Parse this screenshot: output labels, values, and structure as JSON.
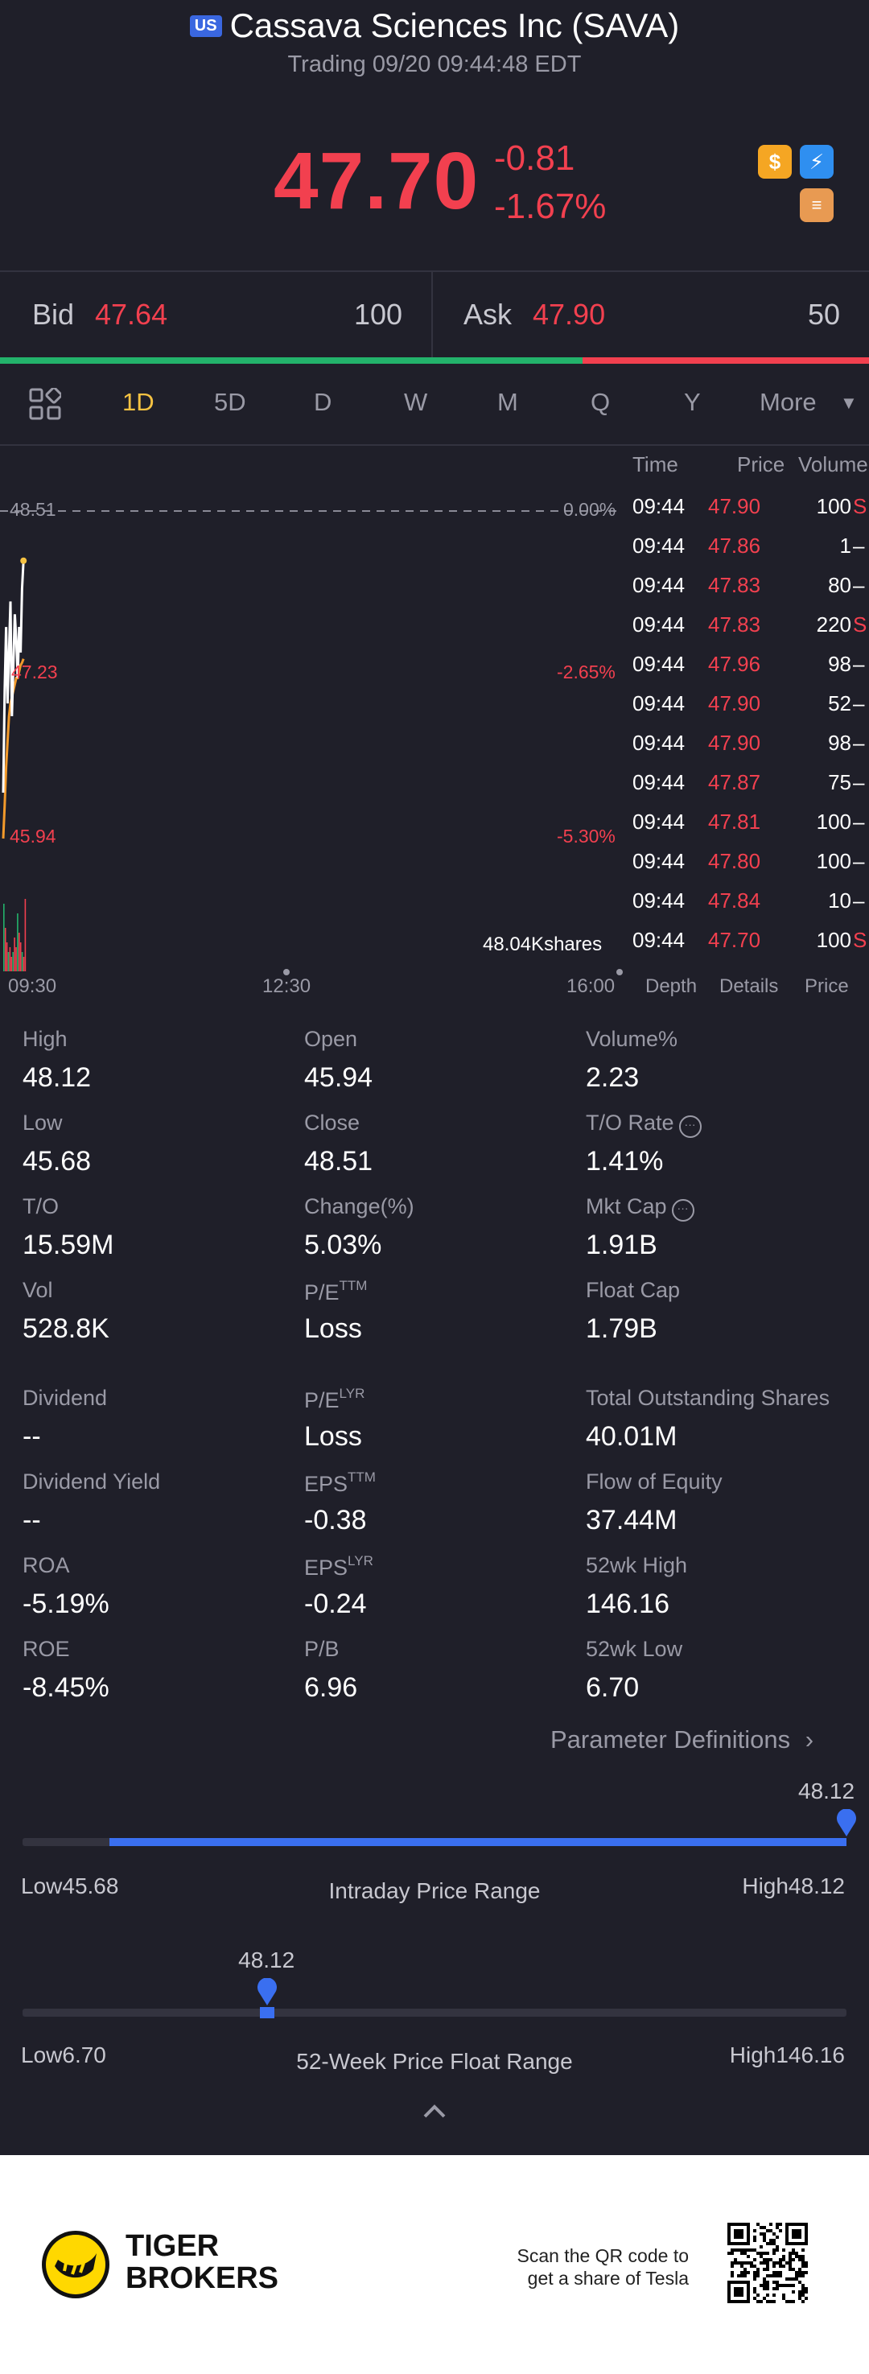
{
  "header": {
    "market_badge": "US",
    "title": "Cassava Sciences Inc (SAVA)",
    "subtitle": "Trading 09/20 09:44:48 EDT",
    "price": "47.70",
    "change": "-0.81",
    "change_pct": "-1.67%",
    "icons": [
      "dollar-icon",
      "flash-icon",
      "stack-icon"
    ]
  },
  "quote": {
    "bid_label": "Bid",
    "bid_price": "47.64",
    "bid_size": "100",
    "ask_label": "Ask",
    "ask_price": "47.90",
    "ask_size": "50",
    "bid_share": 0.67
  },
  "tabs": [
    "1D",
    "5D",
    "D",
    "W",
    "M",
    "Q",
    "Y",
    "More"
  ],
  "active_tab": "1D",
  "ticks": {
    "headers": {
      "time": "Time",
      "price": "Price",
      "volume": "Volume"
    },
    "rows": [
      {
        "time": "09:44",
        "price": "47.90",
        "volume": "100",
        "flag": "S"
      },
      {
        "time": "09:44",
        "price": "47.86",
        "volume": "1",
        "flag": "–"
      },
      {
        "time": "09:44",
        "price": "47.83",
        "volume": "80",
        "flag": "–"
      },
      {
        "time": "09:44",
        "price": "47.83",
        "volume": "220",
        "flag": "S"
      },
      {
        "time": "09:44",
        "price": "47.96",
        "volume": "98",
        "flag": "–"
      },
      {
        "time": "09:44",
        "price": "47.90",
        "volume": "52",
        "flag": "–"
      },
      {
        "time": "09:44",
        "price": "47.90",
        "volume": "98",
        "flag": "–"
      },
      {
        "time": "09:44",
        "price": "47.87",
        "volume": "75",
        "flag": "–"
      },
      {
        "time": "09:44",
        "price": "47.81",
        "volume": "100",
        "flag": "–"
      },
      {
        "time": "09:44",
        "price": "47.80",
        "volume": "100",
        "flag": "–"
      },
      {
        "time": "09:44",
        "price": "47.84",
        "volume": "10",
        "flag": "–"
      },
      {
        "time": "09:44",
        "price": "47.70",
        "volume": "100",
        "flag": "S"
      }
    ],
    "subtabs": [
      "Depth",
      "Details",
      "Price"
    ],
    "active_subtab": "Details"
  },
  "chart": {
    "price_high": "48.51",
    "price_mid": "47.23",
    "price_low": "45.94",
    "pct_high": "0.00%",
    "pct_mid": "-2.65%",
    "pct_low": "-5.30%",
    "volume_label": "48.04Kshares",
    "x_start": "09:30",
    "x_mid": "12:30",
    "x_end": "16:00"
  },
  "chart_data": {
    "type": "line",
    "title": "",
    "x": [
      "09:30",
      "09:31",
      "09:32",
      "09:33",
      "09:34",
      "09:35",
      "09:36",
      "09:37",
      "09:38",
      "09:39",
      "09:40",
      "09:41",
      "09:42",
      "09:43",
      "09:44"
    ],
    "series": [
      {
        "values": [
          46.3,
          47.1,
          47.6,
          47.0,
          47.4,
          47.8,
          46.9,
          47.3,
          47.7,
          47.5,
          47.2,
          47.6,
          47.4,
          47.9,
          48.12
        ]
      },
      {
        "values": [
          45.94,
          46.2,
          46.5,
          46.7,
          46.9,
          47.0,
          47.05,
          47.1,
          47.15,
          47.2,
          47.2,
          47.25,
          47.3,
          47.32,
          47.35
        ]
      }
    ],
    "volume": [
      14,
      9,
      6,
      4,
      5,
      3,
      4,
      7,
      5,
      12,
      8,
      6,
      4,
      3,
      15
    ],
    "ylim": [
      45.94,
      48.51
    ],
    "xlim": [
      "09:30",
      "16:00"
    ]
  },
  "stats": {
    "high_label": "High",
    "high": "48.12",
    "open_label": "Open",
    "open": "45.94",
    "volpct_label": "Volume%",
    "volpct": "2.23",
    "low_label": "Low",
    "low": "45.68",
    "close_label": "Close",
    "close": "48.51",
    "to_rate_label": "T/O Rate",
    "to_rate": "1.41%",
    "to_label": "T/O",
    "to": "15.59M",
    "change_label": "Change(%)",
    "change": "5.03%",
    "mktcap_label": "Mkt Cap",
    "mktcap": "1.91B",
    "vol_label": "Vol",
    "vol": "528.8K",
    "pe_ttm_label": "P/E",
    "pe_ttm_sup": "TTM",
    "pe_ttm": "Loss",
    "floatcap_label": "Float Cap",
    "floatcap": "1.79B",
    "dividend_label": "Dividend",
    "dividend": "--",
    "pe_lyr_label": "P/E",
    "pe_lyr_sup": "LYR",
    "pe_lyr": "Loss",
    "tos_label": "Total Outstanding Shares",
    "tos": "40.01M",
    "divyield_label": "Dividend Yield",
    "divyield": "--",
    "eps_ttm_label": "EPS",
    "eps_ttm_sup": "TTM",
    "eps_ttm": "-0.38",
    "foe_label": "Flow of Equity",
    "foe": "37.44M",
    "roa_label": "ROA",
    "roa": "-5.19%",
    "eps_lyr_label": "EPS",
    "eps_lyr_sup": "LYR",
    "eps_lyr": "-0.24",
    "wkhigh_label": "52wk High",
    "wkhigh": "146.16",
    "roe_label": "ROE",
    "roe": "-8.45%",
    "pb_label": "P/B",
    "pb": "6.96",
    "wklow_label": "52wk Low",
    "wklow": "6.70",
    "param_def": "Parameter Definitions"
  },
  "intraday_range": {
    "marker": "48.12",
    "low_text": "Low45.68",
    "title": "Intraday Price Range",
    "high_text": "High48.12",
    "low": 45.68,
    "high": 48.12,
    "current": 48.12,
    "fill_start": 0.105
  },
  "week52_range": {
    "marker": "48.12",
    "low_text": "Low6.70",
    "title": "52-Week Price Float Range",
    "high_text": "High146.16",
    "low": 6.7,
    "high": 146.16,
    "current": 48.12
  },
  "footer": {
    "brand_line1": "TIGER",
    "brand_line2": "BROKERS",
    "qr_line1": "Scan the QR code to",
    "qr_line2": "get a share of Tesla"
  }
}
